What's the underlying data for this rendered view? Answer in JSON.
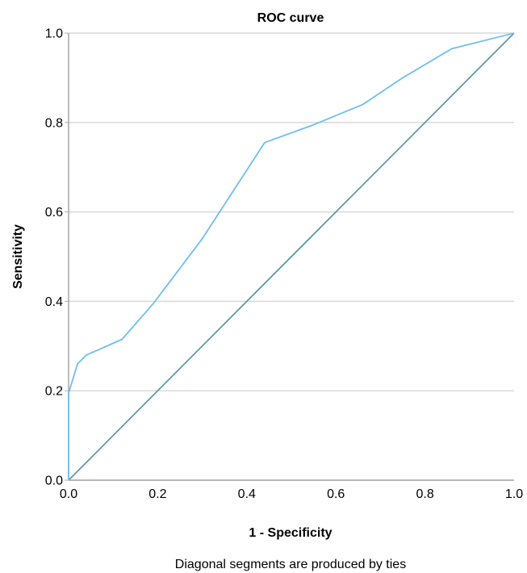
{
  "chart_data": {
    "type": "line",
    "title": "ROC curve",
    "xlabel": "1 - Specificity",
    "ylabel": "Sensitivity",
    "xlim": [
      0.0,
      1.0
    ],
    "ylim": [
      0.0,
      1.0
    ],
    "x_ticks": [
      "0.0",
      "0.2",
      "0.4",
      "0.6",
      "0.8",
      "1.0"
    ],
    "y_ticks": [
      "0.0",
      "0.2",
      "0.4",
      "0.6",
      "0.8",
      "1.0"
    ],
    "grid": "horizontal",
    "footnote": "Diagonal segments are produced by ties",
    "series": [
      {
        "color": "#6ebfed",
        "points": [
          [
            0.0,
            0.0
          ],
          [
            0.0,
            0.195
          ],
          [
            0.02,
            0.26
          ],
          [
            0.04,
            0.28
          ],
          [
            0.12,
            0.315
          ],
          [
            0.19,
            0.395
          ],
          [
            0.3,
            0.54
          ],
          [
            0.44,
            0.755
          ],
          [
            0.55,
            0.795
          ],
          [
            0.66,
            0.84
          ],
          [
            0.75,
            0.9
          ],
          [
            0.86,
            0.965
          ],
          [
            1.0,
            1.0
          ]
        ]
      },
      {
        "color": "#5e9c9c",
        "points": [
          [
            0.0,
            0.0
          ],
          [
            1.0,
            1.0
          ]
        ]
      }
    ]
  }
}
